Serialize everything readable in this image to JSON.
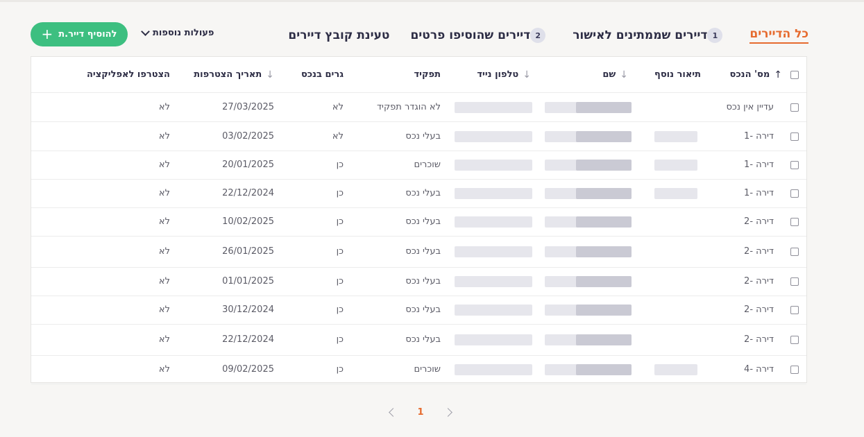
{
  "tabs": [
    {
      "label": "כל הדיירים",
      "active": true
    },
    {
      "label": "דיירים שממתינים לאישור",
      "badge": "1"
    },
    {
      "label": "דיירים שהוסיפו פרטים",
      "badge": "2"
    },
    {
      "label": "טעינת קובץ דיירים"
    }
  ],
  "toolbar": {
    "more_actions": "פעולות נוספות",
    "add_button": "להוסיף דייר.ת",
    "plus_icon": "+"
  },
  "table": {
    "headers": {
      "property_no": "מס' הנכס",
      "extra_desc": "תיאור נוסף",
      "name": "שם",
      "mobile": "טלפון נייד",
      "role": "תפקיד",
      "lives_in": "גרים בנכס",
      "join_date": "תאריך הצטרפות",
      "joined_app": "הצטרפו לאפליקציה"
    },
    "sort_up_icon": "↑",
    "sort_down_icon": "↓",
    "rows": [
      {
        "property": "עדיין אין נכס",
        "role": "לא הוגדר תפקיד",
        "lives": "לא",
        "date": "27/03/2025",
        "app": "לא"
      },
      {
        "property": "דירה -1",
        "role": "בעלי נכס",
        "lives": "לא",
        "date": "03/02/2025",
        "app": "לא"
      },
      {
        "property": "דירה -1",
        "role": "שוכרים",
        "lives": "כן",
        "date": "20/01/2025",
        "app": "לא"
      },
      {
        "property": "דירה -1",
        "role": "בעלי נכס",
        "lives": "כן",
        "date": "22/12/2024",
        "app": "לא"
      },
      {
        "property": "דירה -2",
        "role": "בעלי נכס",
        "lives": "כן",
        "date": "10/02/2025",
        "app": "לא"
      },
      {
        "property": "דירה -2",
        "role": "בעלי נכס",
        "lives": "כן",
        "date": "26/01/2025",
        "app": "לא"
      },
      {
        "property": "דירה -2",
        "role": "בעלי נכס",
        "lives": "כן",
        "date": "01/01/2025",
        "app": "לא"
      },
      {
        "property": "דירה -2",
        "role": "בעלי נכס",
        "lives": "כן",
        "date": "30/12/2024",
        "app": "לא"
      },
      {
        "property": "דירה -2",
        "role": "בעלי נכס",
        "lives": "כן",
        "date": "22/12/2024",
        "app": "לא"
      },
      {
        "property": "דירה -4",
        "role": "שוכרים",
        "lives": "כן",
        "date": "09/02/2025",
        "app": "לא"
      }
    ]
  },
  "pagination": {
    "current": "1"
  },
  "colors": {
    "accent": "#e66b2e",
    "add_button": "#3dbf80"
  }
}
